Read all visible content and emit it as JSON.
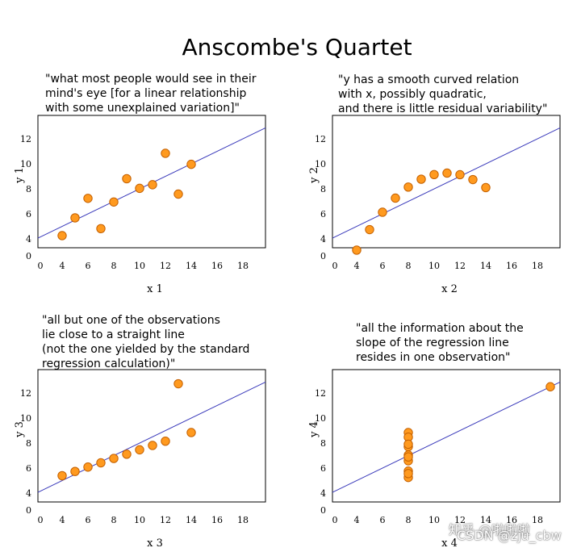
{
  "title": "Anscombe's Quartet",
  "watermark": {
    "line1": "知乎 @啦啦啦",
    "line2": "CSDN @zju_cbw"
  },
  "colors": {
    "point_fill": "#ff9a1f",
    "point_stroke": "#c46000",
    "line": "#3b3bbb",
    "axes": "#000000"
  },
  "chart_data": [
    {
      "type": "scatter",
      "annotation": "\"what most people would see in their\nmind's eye [for a linear relationship\nwith some unexplained variation]\"",
      "xlabel": "x 1",
      "ylabel": "y 1",
      "xticks": [
        "0",
        "4",
        "6",
        "8",
        "10",
        "12",
        "14",
        "16",
        "18"
      ],
      "yticks": [
        "0",
        "4",
        "6",
        "8",
        "10",
        "12"
      ],
      "x": [
        10,
        8,
        13,
        9,
        11,
        14,
        6,
        4,
        12,
        7,
        5
      ],
      "y": [
        8.04,
        6.95,
        7.58,
        8.81,
        8.33,
        9.96,
        7.24,
        4.26,
        10.84,
        4.82,
        5.68
      ],
      "fit": {
        "intercept": 3.0,
        "slope": 0.5
      }
    },
    {
      "type": "scatter",
      "annotation": "\"y has a smooth curved relation\nwith x, possibly quadratic,\nand there is little residual variability\"",
      "xlabel": "x 2",
      "ylabel": "y 2",
      "xticks": [
        "0",
        "4",
        "6",
        "8",
        "10",
        "12",
        "14",
        "16",
        "18"
      ],
      "yticks": [
        "0",
        "4",
        "6",
        "8",
        "10",
        "12"
      ],
      "x": [
        10,
        8,
        13,
        9,
        11,
        14,
        6,
        4,
        12,
        7,
        5
      ],
      "y": [
        9.14,
        8.14,
        8.74,
        8.77,
        9.26,
        8.1,
        6.13,
        3.1,
        9.13,
        7.26,
        4.74
      ],
      "fit": {
        "intercept": 3.0,
        "slope": 0.5
      }
    },
    {
      "type": "scatter",
      "annotation": "\"all but one of the observations\nlie close to a straight line\n(not the one yielded by the standard\nregression calculation)\"",
      "xlabel": "x 3",
      "ylabel": "y 3",
      "xticks": [
        "0",
        "4",
        "6",
        "8",
        "10",
        "12",
        "14",
        "16",
        "18"
      ],
      "yticks": [
        "0",
        "4",
        "6",
        "8",
        "10",
        "12"
      ],
      "x": [
        10,
        8,
        13,
        9,
        11,
        14,
        6,
        4,
        12,
        7,
        5
      ],
      "y": [
        7.46,
        6.77,
        12.74,
        7.11,
        7.81,
        8.84,
        6.08,
        5.39,
        8.15,
        6.42,
        5.73
      ],
      "fit": {
        "intercept": 3.0,
        "slope": 0.5
      }
    },
    {
      "type": "scatter",
      "annotation": "\"all the information about the\nslope of the regression line\nresides in one observation\"",
      "xlabel": "x 4",
      "ylabel": "y 4",
      "xticks": [
        "0",
        "4",
        "6",
        "8",
        "10",
        "12",
        "14",
        "16",
        "18"
      ],
      "yticks": [
        "0",
        "4",
        "6",
        "8",
        "10",
        "12"
      ],
      "x": [
        8,
        8,
        8,
        8,
        8,
        8,
        8,
        19,
        8,
        8,
        8
      ],
      "y": [
        6.58,
        5.76,
        7.71,
        8.84,
        8.47,
        7.04,
        5.25,
        12.5,
        5.56,
        7.91,
        6.89
      ],
      "fit": {
        "intercept": 3.0,
        "slope": 0.5
      }
    }
  ]
}
